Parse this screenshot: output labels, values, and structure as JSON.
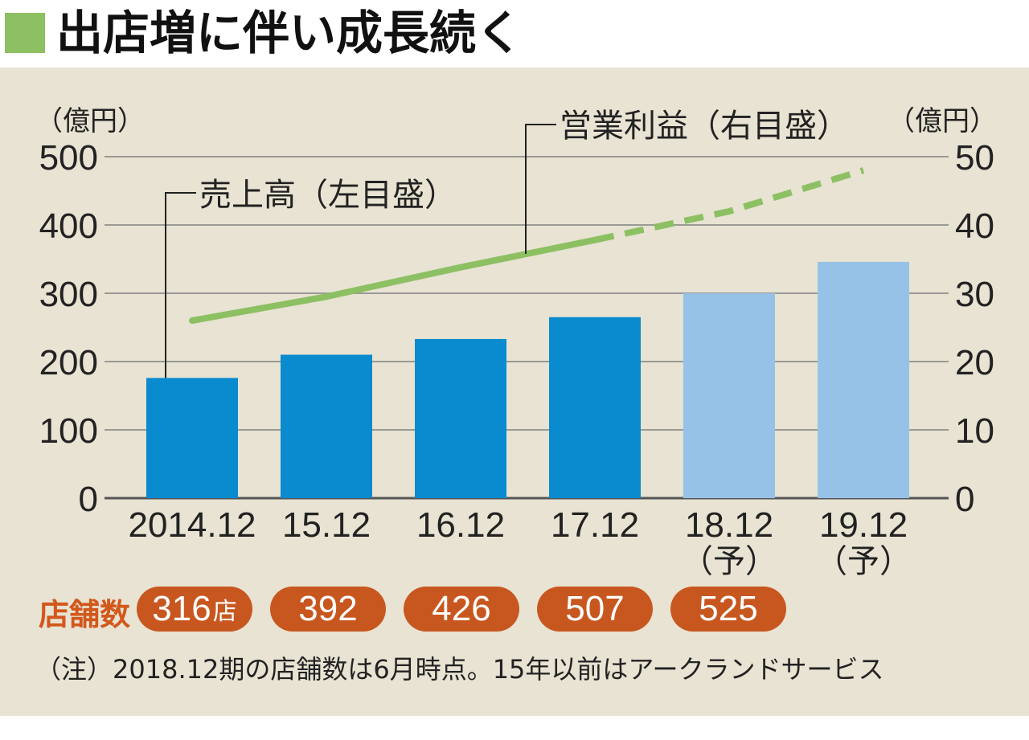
{
  "title": "出店増に伴い成長続く",
  "chart_data": {
    "type": "bar",
    "categories": [
      "2014.12",
      "15.12",
      "16.12",
      "17.12",
      "18.12",
      "19.12"
    ],
    "category_sublabels": [
      "",
      "",
      "",
      "",
      "（予）",
      "（予）"
    ],
    "forecast": [
      false,
      false,
      false,
      false,
      true,
      true
    ],
    "series": [
      {
        "name": "売上高（左目盛）",
        "axis": "left",
        "type": "bar",
        "values": [
          176,
          210,
          233,
          265,
          300,
          346
        ]
      },
      {
        "name": "営業利益（右目盛）",
        "axis": "right",
        "type": "line",
        "values": [
          26,
          29.5,
          33.8,
          37.8,
          42,
          48
        ]
      }
    ],
    "left_axis": {
      "unit": "（億円）",
      "ylim": [
        0,
        500
      ],
      "ticks": [
        "0",
        "100",
        "200",
        "300",
        "400",
        "500"
      ]
    },
    "right_axis": {
      "unit": "（億円）",
      "ylim": [
        0,
        50
      ],
      "ticks": [
        "0",
        "10",
        "20",
        "30",
        "40",
        "50"
      ]
    },
    "grid": true
  },
  "stores": {
    "label": "店舗数",
    "values": [
      "316",
      "392",
      "426",
      "507",
      "525"
    ],
    "first_suffix": "店"
  },
  "note": "（注）2018.12期の店舗数は6月時点。15年以前はアークランドサービス",
  "colors": {
    "bar_actual": "#0a8acf",
    "bar_forecast": "#97c2e8",
    "line": "#8cc063",
    "pill": "#c8571f",
    "panel": "#e8e3d2",
    "accent_title": "#8cc063"
  }
}
